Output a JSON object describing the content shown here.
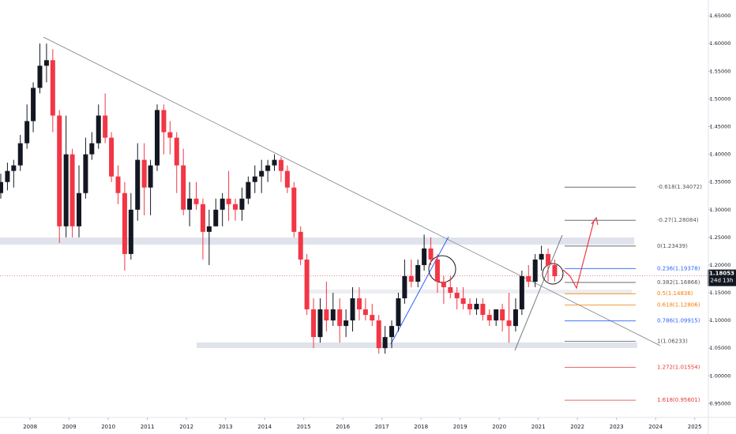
{
  "chart_data": {
    "type": "candlestick",
    "x": [
      2007.25,
      2007.42,
      2007.58,
      2007.75,
      2007.92,
      2008.08,
      2008.25,
      2008.42,
      2008.58,
      2008.75,
      2008.92,
      2009.08,
      2009.25,
      2009.42,
      2009.58,
      2009.75,
      2009.92,
      2010.08,
      2010.25,
      2010.42,
      2010.58,
      2010.75,
      2010.92,
      2011.08,
      2011.25,
      2011.42,
      2011.58,
      2011.75,
      2011.92,
      2012.08,
      2012.25,
      2012.42,
      2012.58,
      2012.75,
      2012.92,
      2013.08,
      2013.25,
      2013.42,
      2013.58,
      2013.75,
      2013.92,
      2014.08,
      2014.25,
      2014.42,
      2014.58,
      2014.75,
      2014.92,
      2015.08,
      2015.25,
      2015.42,
      2015.58,
      2015.75,
      2015.92,
      2016.08,
      2016.25,
      2016.42,
      2016.58,
      2016.75,
      2016.92,
      2017.08,
      2017.25,
      2017.42,
      2017.58,
      2017.75,
      2017.92,
      2018.08,
      2018.25,
      2018.42,
      2018.58,
      2018.75,
      2018.92,
      2019.08,
      2019.25,
      2019.42,
      2019.58,
      2019.75,
      2019.92,
      2020.08,
      2020.25,
      2020.42,
      2020.58,
      2020.75,
      2020.92,
      2021.08,
      2021.25,
      2021.42
    ],
    "open": [
      1.33,
      1.35,
      1.37,
      1.38,
      1.42,
      1.46,
      1.52,
      1.56,
      1.57,
      1.47,
      1.27,
      1.4,
      1.27,
      1.33,
      1.4,
      1.42,
      1.47,
      1.43,
      1.36,
      1.33,
      1.22,
      1.3,
      1.39,
      1.34,
      1.38,
      1.48,
      1.44,
      1.43,
      1.38,
      1.3,
      1.32,
      1.31,
      1.26,
      1.27,
      1.3,
      1.32,
      1.31,
      1.3,
      1.32,
      1.35,
      1.36,
      1.37,
      1.38,
      1.39,
      1.37,
      1.34,
      1.26,
      1.21,
      1.12,
      1.07,
      1.12,
      1.1,
      1.12,
      1.09,
      1.1,
      1.14,
      1.12,
      1.11,
      1.1,
      1.05,
      1.07,
      1.09,
      1.14,
      1.18,
      1.17,
      1.2,
      1.23,
      1.21,
      1.17,
      1.16,
      1.15,
      1.14,
      1.13,
      1.12,
      1.13,
      1.11,
      1.1,
      1.12,
      1.1,
      1.09,
      1.12,
      1.18,
      1.17,
      1.21,
      1.22,
      1.2
    ],
    "high": [
      1.365,
      1.385,
      1.39,
      1.435,
      1.49,
      1.53,
      1.6,
      1.6,
      1.59,
      1.48,
      1.47,
      1.41,
      1.38,
      1.43,
      1.44,
      1.49,
      1.51,
      1.44,
      1.38,
      1.35,
      1.33,
      1.42,
      1.42,
      1.39,
      1.49,
      1.49,
      1.46,
      1.44,
      1.41,
      1.35,
      1.35,
      1.32,
      1.3,
      1.32,
      1.33,
      1.37,
      1.32,
      1.34,
      1.36,
      1.38,
      1.39,
      1.39,
      1.4,
      1.395,
      1.38,
      1.35,
      1.27,
      1.22,
      1.14,
      1.14,
      1.17,
      1.15,
      1.14,
      1.12,
      1.16,
      1.16,
      1.14,
      1.13,
      1.11,
      1.09,
      1.1,
      1.15,
      1.21,
      1.21,
      1.21,
      1.255,
      1.25,
      1.22,
      1.18,
      1.18,
      1.16,
      1.16,
      1.14,
      1.14,
      1.14,
      1.12,
      1.12,
      1.13,
      1.15,
      1.14,
      1.19,
      1.2,
      1.22,
      1.235,
      1.23,
      1.21
    ],
    "low": [
      1.32,
      1.335,
      1.34,
      1.37,
      1.41,
      1.44,
      1.51,
      1.53,
      1.44,
      1.24,
      1.25,
      1.25,
      1.25,
      1.32,
      1.39,
      1.41,
      1.42,
      1.35,
      1.31,
      1.19,
      1.21,
      1.28,
      1.29,
      1.29,
      1.37,
      1.4,
      1.4,
      1.33,
      1.29,
      1.27,
      1.3,
      1.21,
      1.2,
      1.27,
      1.27,
      1.28,
      1.28,
      1.28,
      1.31,
      1.33,
      1.33,
      1.35,
      1.37,
      1.35,
      1.33,
      1.25,
      1.2,
      1.11,
      1.05,
      1.06,
      1.08,
      1.09,
      1.06,
      1.07,
      1.08,
      1.1,
      1.1,
      1.09,
      1.04,
      1.04,
      1.05,
      1.08,
      1.13,
      1.16,
      1.16,
      1.19,
      1.2,
      1.15,
      1.13,
      1.14,
      1.12,
      1.12,
      1.11,
      1.11,
      1.1,
      1.09,
      1.09,
      1.08,
      1.06,
      1.08,
      1.11,
      1.16,
      1.16,
      1.19,
      1.17,
      1.17
    ],
    "close": [
      1.35,
      1.37,
      1.38,
      1.42,
      1.46,
      1.52,
      1.56,
      1.57,
      1.47,
      1.27,
      1.4,
      1.27,
      1.33,
      1.4,
      1.42,
      1.47,
      1.43,
      1.36,
      1.33,
      1.22,
      1.3,
      1.39,
      1.34,
      1.38,
      1.48,
      1.44,
      1.43,
      1.38,
      1.3,
      1.32,
      1.31,
      1.26,
      1.27,
      1.3,
      1.32,
      1.31,
      1.3,
      1.32,
      1.35,
      1.36,
      1.37,
      1.38,
      1.39,
      1.37,
      1.34,
      1.26,
      1.21,
      1.12,
      1.07,
      1.12,
      1.1,
      1.12,
      1.09,
      1.1,
      1.14,
      1.12,
      1.11,
      1.1,
      1.05,
      1.07,
      1.09,
      1.14,
      1.18,
      1.17,
      1.2,
      1.23,
      1.21,
      1.17,
      1.16,
      1.15,
      1.14,
      1.13,
      1.12,
      1.13,
      1.11,
      1.1,
      1.12,
      1.1,
      1.09,
      1.12,
      1.18,
      1.17,
      1.21,
      1.22,
      1.2,
      1.18
    ],
    "up_color": "#131722",
    "down_color": "#f23645",
    "xlim": [
      2007.23,
      2025.35
    ],
    "xticks": [
      2008,
      2009,
      2010,
      2011,
      2012,
      2013,
      2014,
      2015,
      2016,
      2017,
      2018,
      2019,
      2020,
      2021,
      2022,
      2023,
      2024,
      2025
    ],
    "ylim": [
      0.92486,
      1.67871
    ],
    "yticks": [
      {
        "value": 0.95,
        "label": "0.95000"
      },
      {
        "value": 1.0,
        "label": "1.00000"
      },
      {
        "value": 1.05,
        "label": "1.05000"
      },
      {
        "value": 1.1,
        "label": "1.10000"
      },
      {
        "value": 1.15,
        "label": "1.15000"
      },
      {
        "value": 1.2,
        "label": "1.20000"
      },
      {
        "value": 1.25,
        "label": "1.25000"
      },
      {
        "value": 1.3,
        "label": "1.30000"
      },
      {
        "value": 1.35,
        "label": "1.35000"
      },
      {
        "value": 1.4,
        "label": "1.40000"
      },
      {
        "value": 1.45,
        "label": "1.45000"
      },
      {
        "value": 1.5,
        "label": "1.50000"
      },
      {
        "value": 1.55,
        "label": "1.55000"
      },
      {
        "value": 1.6,
        "label": "1.60000"
      },
      {
        "value": 1.65,
        "label": "1.65000"
      }
    ],
    "last_price": 1.18053,
    "countdown": "24d 13h",
    "fib_levels": [
      {
        "value": 1.34072,
        "label": "-0.618(1.34072)",
        "color": "#555555"
      },
      {
        "value": 1.28084,
        "label": "-0.27(1.28084)",
        "color": "#555555"
      },
      {
        "value": 1.23439,
        "label": "0(1.23439)",
        "color": "#555555"
      },
      {
        "value": 1.19378,
        "label": "0.236(1.19378)",
        "color": "#2962ff"
      },
      {
        "value": 1.16866,
        "label": "0.382(1.16866)",
        "color": "#555555"
      },
      {
        "value": 1.14836,
        "label": "0.5(1.14836)",
        "color": "#f57c00"
      },
      {
        "value": 1.12806,
        "label": "0.618(1.12806)",
        "color": "#f57c00"
      },
      {
        "value": 1.09915,
        "label": "0.786(1.09915)",
        "color": "#2962ff"
      },
      {
        "value": 1.06233,
        "label": "1(1.06233)",
        "color": "#555555"
      },
      {
        "value": 1.01554,
        "label": "1.272(1.01554)",
        "color": "#e53935"
      },
      {
        "value": 0.95601,
        "label": "1.618(0.95601)",
        "color": "#e53935"
      }
    ]
  }
}
